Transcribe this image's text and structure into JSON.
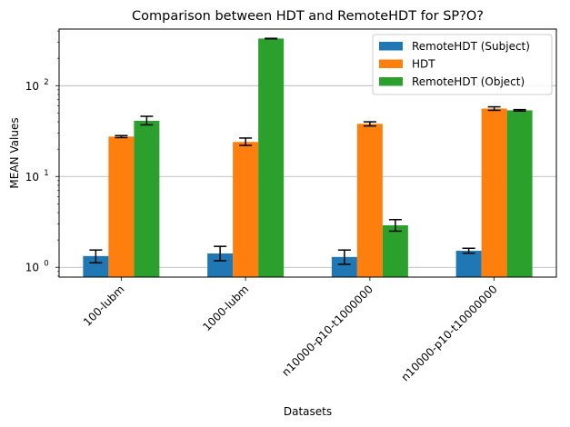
{
  "chart_data": {
    "type": "bar",
    "title": "Comparison between HDT and RemoteHDT for SP?O?",
    "xlabel": "Datasets",
    "ylabel": "MEAN Values",
    "yscale": "log",
    "ylim": [
      0.78,
      420
    ],
    "grid": "y-major",
    "legend_position": "top-right",
    "categories": [
      "100-lubm",
      "1000-lubm",
      "n10000-p10-t1000000",
      "n10000-p10-t10000000"
    ],
    "series": [
      {
        "name": "RemoteHDT (Subject)",
        "color": "#1f77b4",
        "values": [
          1.33,
          1.42,
          1.3,
          1.52
        ],
        "err_low": [
          1.12,
          1.18,
          1.08,
          1.43
        ],
        "err_high": [
          1.55,
          1.7,
          1.55,
          1.62
        ]
      },
      {
        "name": "HDT",
        "color": "#ff7f0e",
        "values": [
          27.5,
          24.0,
          38.0,
          56.0
        ],
        "err_low": [
          26.8,
          22.0,
          36.0,
          53.5
        ],
        "err_high": [
          28.2,
          26.5,
          40.0,
          58.5
        ]
      },
      {
        "name": "RemoteHDT (Object)",
        "color": "#2ca02c",
        "values": [
          41.0,
          330.0,
          2.9,
          53.5
        ],
        "err_low": [
          37.0,
          328.0,
          2.5,
          52.5
        ],
        "err_high": [
          46.0,
          332.0,
          3.35,
          54.5
        ]
      }
    ],
    "y_ticks": [
      {
        "value": 1,
        "label": "10",
        "exp": "0"
      },
      {
        "value": 10,
        "label": "10",
        "exp": "1"
      },
      {
        "value": 100,
        "label": "10",
        "exp": "2"
      }
    ]
  }
}
